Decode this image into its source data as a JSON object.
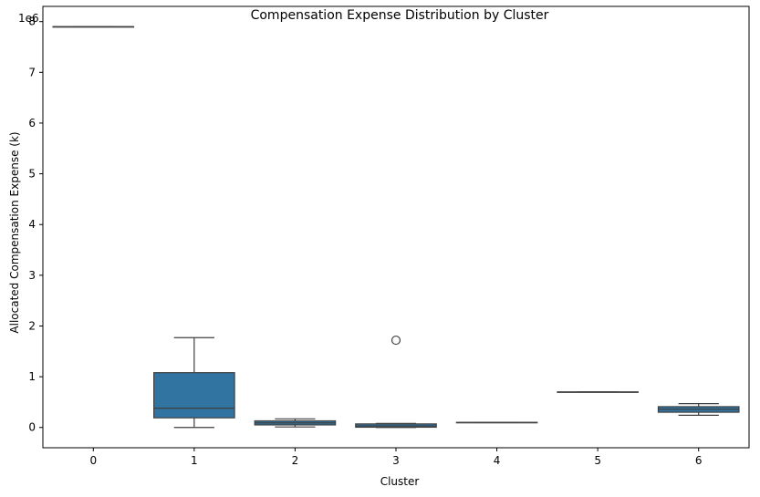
{
  "chart_data": {
    "type": "box",
    "title": "Compensation Expense Distribution by Cluster",
    "xlabel": "Cluster",
    "ylabel": "Allocated Compensation Expense (k)",
    "y_offset_label": "1e6",
    "y_scale": 1000000,
    "ylim": [
      -400000,
      8300000
    ],
    "y_ticks": [
      0,
      1000000,
      2000000,
      3000000,
      4000000,
      5000000,
      6000000,
      7000000,
      8000000
    ],
    "y_tick_labels": [
      "0",
      "1",
      "2",
      "3",
      "4",
      "5",
      "6",
      "7",
      "8"
    ],
    "categories": [
      "0",
      "1",
      "2",
      "3",
      "4",
      "5",
      "6"
    ],
    "box_color": "#3274a1",
    "line_color": "#3f3f3f",
    "grid": false,
    "boxes": [
      {
        "cluster": "0",
        "whisker_low": 7900000,
        "q1": 7900000,
        "median": 7900000,
        "q3": 7900000,
        "whisker_high": 7900000,
        "outliers": []
      },
      {
        "cluster": "1",
        "whisker_low": 0,
        "q1": 190000,
        "median": 380000,
        "q3": 1080000,
        "whisker_high": 1770000,
        "outliers": []
      },
      {
        "cluster": "2",
        "whisker_low": 10000,
        "q1": 50000,
        "median": 90000,
        "q3": 130000,
        "whisker_high": 170000,
        "outliers": []
      },
      {
        "cluster": "3",
        "whisker_low": 0,
        "q1": 5000,
        "median": 30000,
        "q3": 70000,
        "whisker_high": 80000,
        "outliers": [
          1720000
        ]
      },
      {
        "cluster": "4",
        "whisker_low": 100000,
        "q1": 100000,
        "median": 100000,
        "q3": 100000,
        "whisker_high": 100000,
        "outliers": []
      },
      {
        "cluster": "5",
        "whisker_low": 700000,
        "q1": 700000,
        "median": 700000,
        "q3": 700000,
        "whisker_high": 700000,
        "outliers": []
      },
      {
        "cluster": "6",
        "whisker_low": 240000,
        "q1": 300000,
        "median": 360000,
        "q3": 410000,
        "whisker_high": 470000,
        "outliers": []
      }
    ]
  }
}
